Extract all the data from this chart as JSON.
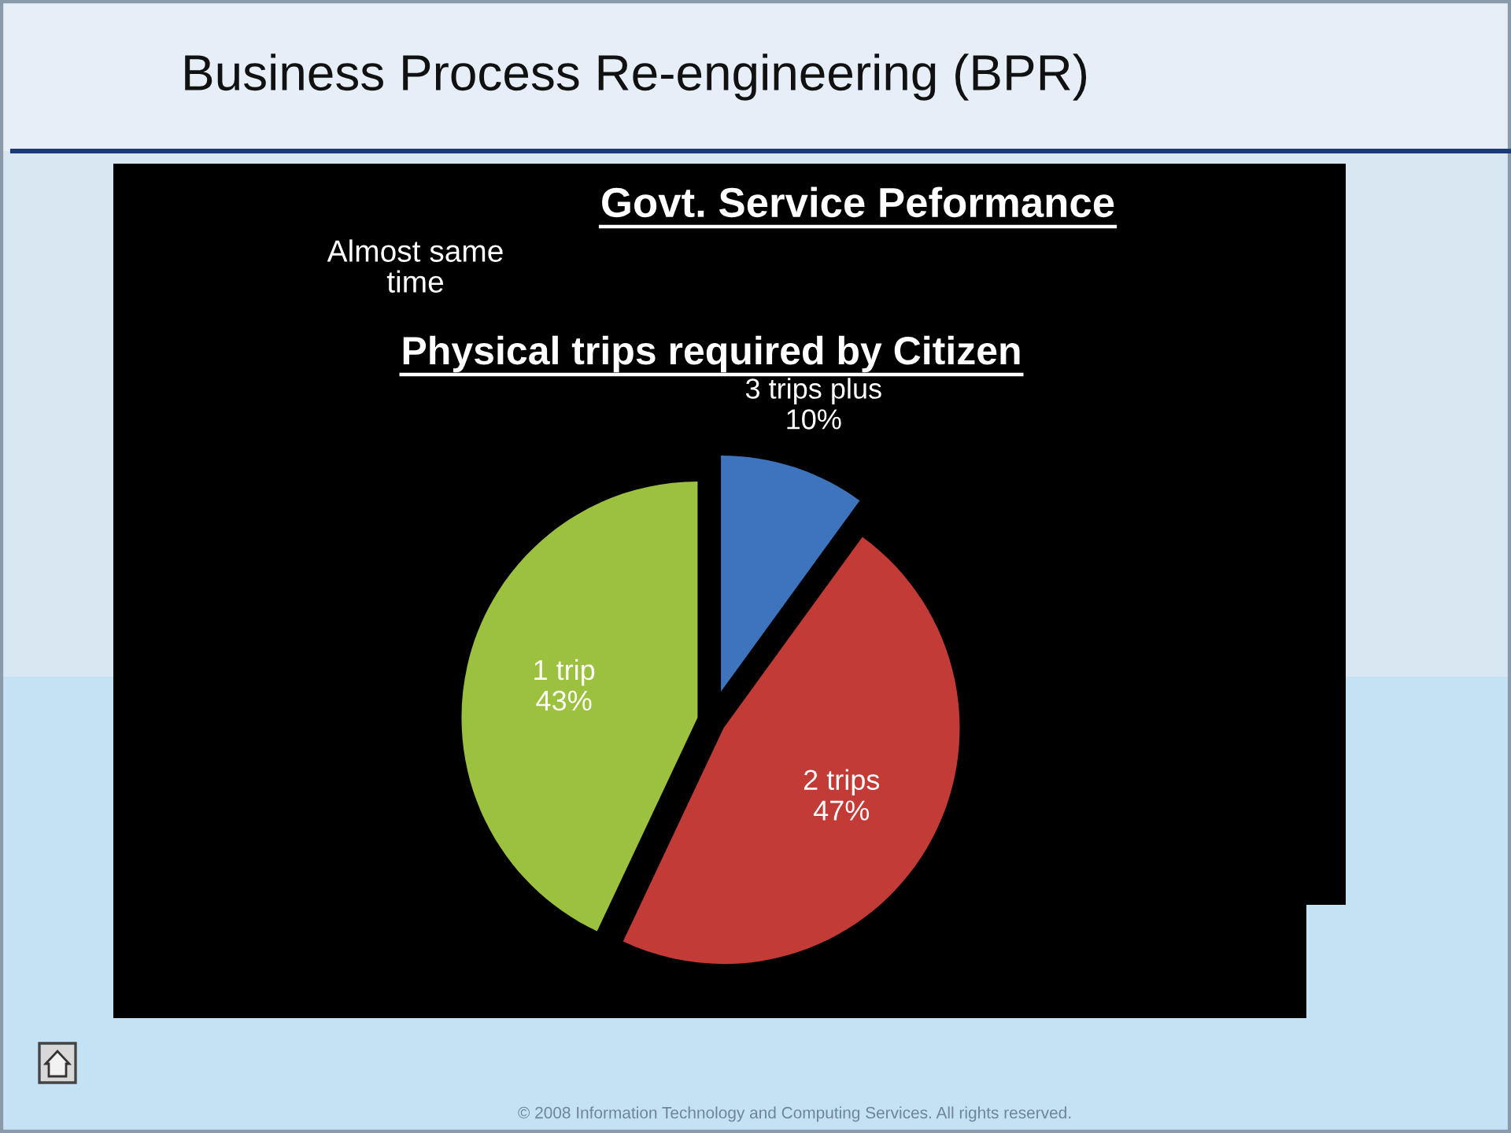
{
  "chart_data": {
    "type": "pie",
    "title": "Business Process Re-engineering (BPR)",
    "subtitle": "Govt. Service Peformance",
    "categories": [
      "3 trips plus",
      "2 trips",
      "1 trip"
    ],
    "values": [
      10,
      47,
      43
    ],
    "colors": [
      "#3d74bd",
      "#c23b36",
      "#9cc13f"
    ],
    "value_labels": [
      "10%",
      "47%",
      "43%"
    ],
    "annotations": [
      "Physical trips required by Citizen",
      "Almost same\ntime",
      "© 2008 Information Technology and Computing Services. All rights reserved."
    ]
  }
}
